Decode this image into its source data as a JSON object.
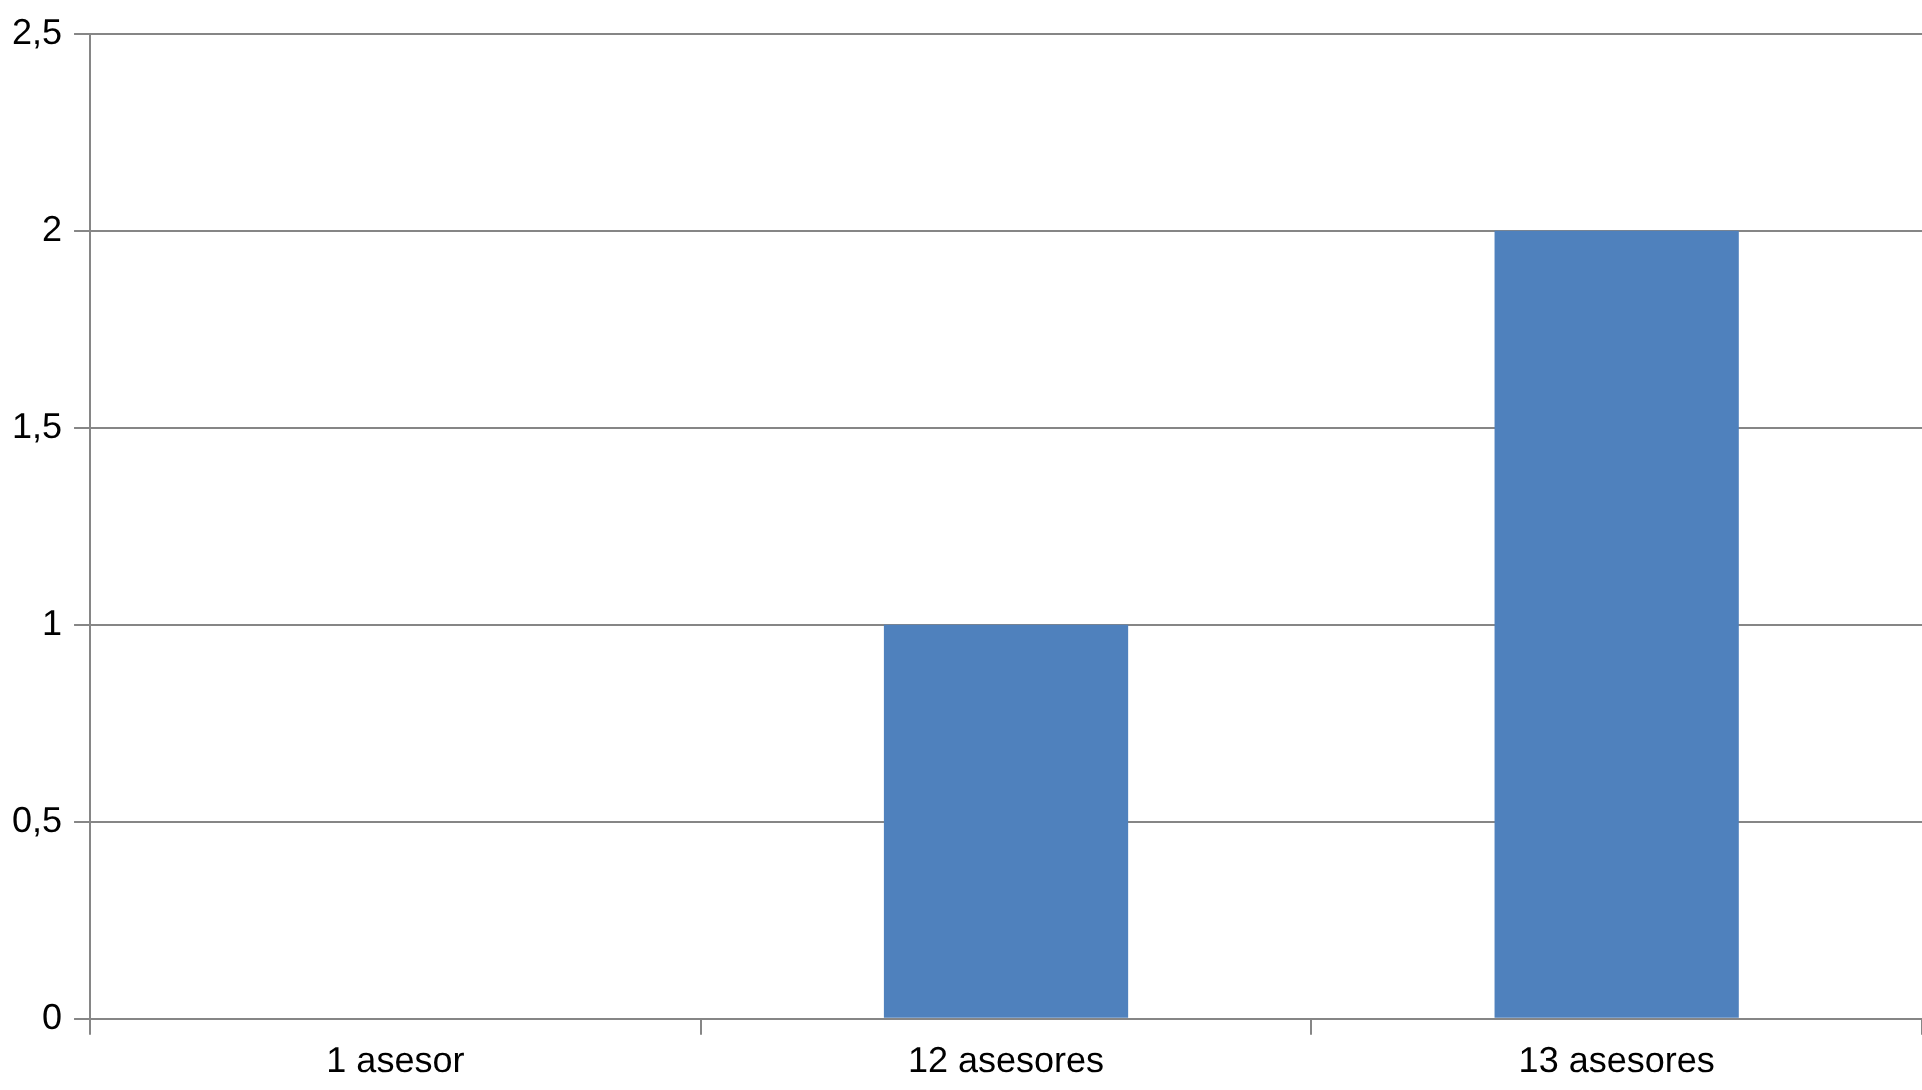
{
  "chart_data": {
    "type": "bar",
    "categories": [
      "1 asesor",
      "12 asesores",
      "13 asesores"
    ],
    "values": [
      0,
      1,
      2
    ],
    "color": "#4f81bd",
    "ylim": [
      0,
      2.5
    ],
    "yticks": [
      {
        "value": 0,
        "label": "0"
      },
      {
        "value": 0.5,
        "label": "0,5"
      },
      {
        "value": 1,
        "label": "1"
      },
      {
        "value": 1.5,
        "label": "1,5"
      },
      {
        "value": 2,
        "label": "2"
      },
      {
        "value": 2.5,
        "label": "2,5"
      }
    ],
    "grid": "y",
    "legend": false
  }
}
